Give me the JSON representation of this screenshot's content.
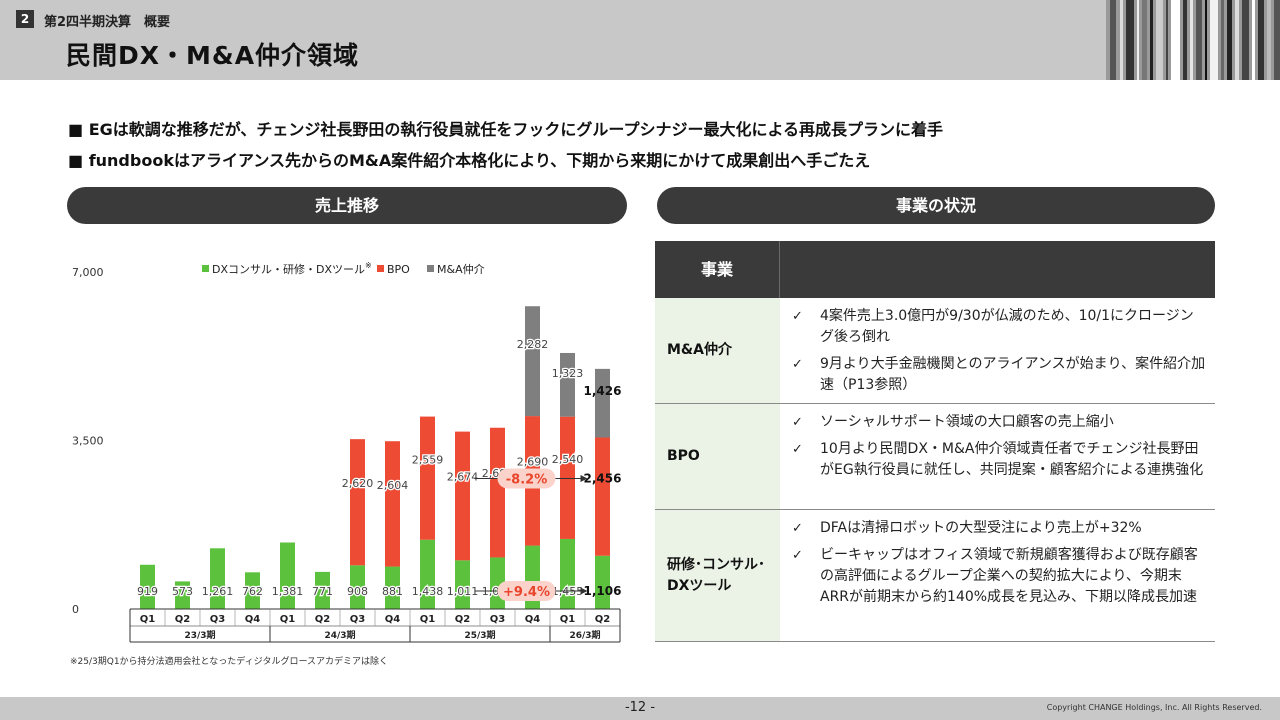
{
  "header": {
    "section_number": "2",
    "section_label": "第2四半期決算　概要",
    "title": "民間DX・M&A仲介領域"
  },
  "bullets": [
    "■ EGは軟調な推移だが、チェンジ社長野田の執行役員就任をフックにグループシナジー最大化による再成長プランに着手",
    "■ fundbookはアライアンス先からのM&A案件紹介本格化により、下期から来期にかけて成果創出へ手ごたえ"
  ],
  "left_panel_title": "売上推移",
  "right_panel_title": "事業の状況",
  "chart_data": {
    "type": "bar",
    "stacked": true,
    "categories": [
      "Q1",
      "Q2",
      "Q3",
      "Q4",
      "Q1",
      "Q2",
      "Q3",
      "Q4",
      "Q1",
      "Q2",
      "Q3",
      "Q4",
      "Q1",
      "Q2"
    ],
    "periods": [
      {
        "label": "23/3期",
        "count": 4
      },
      {
        "label": "24/3期",
        "count": 4
      },
      {
        "label": "25/3期",
        "count": 4
      },
      {
        "label": "26/3期",
        "count": 2
      }
    ],
    "series": [
      {
        "name": "DXコンサル・研修・DXツール",
        "color": "#5cc13c",
        "values": [
          919,
          573,
          1261,
          762,
          1381,
          771,
          908,
          881,
          1438,
          1011,
          1071,
          1317,
          1455,
          1106
        ]
      },
      {
        "name": "BPO",
        "color": "#ee4b35",
        "values": [
          0,
          0,
          0,
          0,
          0,
          0,
          2620,
          2604,
          2559,
          2674,
          2694,
          2690,
          2540,
          2456
        ]
      },
      {
        "name": "M&A仲介",
        "color": "#7f7f7f",
        "values": [
          0,
          0,
          0,
          0,
          0,
          0,
          0,
          0,
          0,
          0,
          0,
          2282,
          1323,
          1426
        ]
      }
    ],
    "legend_note": "※",
    "yticks": [
      "0",
      "3,500",
      "7,000"
    ],
    "ylim": [
      0,
      7000
    ],
    "callouts": [
      {
        "label": "-8.2%",
        "series": "BPO",
        "from_index": 9,
        "to_index": 13
      },
      {
        "label": "+9.4%",
        "series": "DXコンサル・研修・DXツール",
        "from_index": 9,
        "to_index": 13
      }
    ]
  },
  "footnote": "※25/3期Q1から持分法適用会社となったディジタルグロースアカデミアは除く",
  "table": {
    "header": "事業",
    "rows": [
      {
        "name": "M&A仲介",
        "items": [
          "4案件売上3.0億円が9/30が仏滅のため、10/1にクロージング後ろ倒れ",
          "9月より大手金融機関とのアライアンスが始まり、案件紹介加速（P13参照）"
        ]
      },
      {
        "name": "BPO",
        "items": [
          "ソーシャルサポート領域の大口顧客の売上縮小",
          "10月より民間DX・M&A仲介領域責任者でチェンジ社長野田がEG執行役員に就任し、共同提案・顧客紹介による連携強化"
        ]
      },
      {
        "name": "研修･コンサル･DXツール",
        "items": [
          "DFAは清掃ロボットの大型受注により売上が+32%",
          "ビーキャップはオフィス領域で新規顧客獲得および既存顧客の高評価によるグループ企業への契約拡大により、今期末ARRが前期末から約140%成長を見込み、下期以降成長加速"
        ]
      }
    ],
    "check_mark": "✓"
  },
  "footer": {
    "page_number": "-12 -",
    "copyright": "Copyright CHANGE Holdings, Inc. All Rights Reserved."
  }
}
